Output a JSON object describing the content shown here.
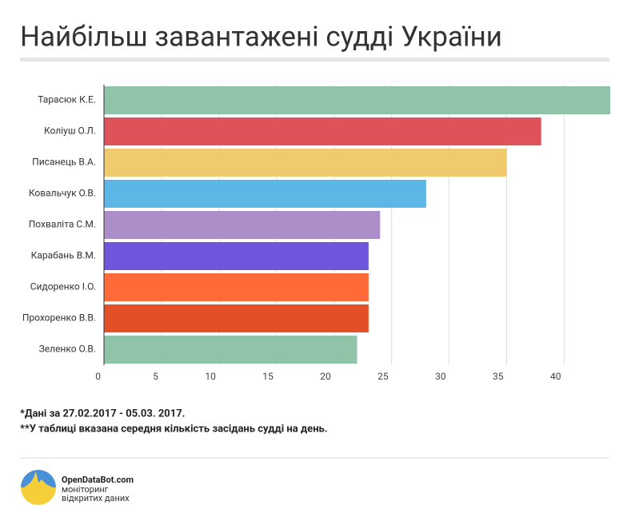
{
  "chart_data": {
    "type": "bar",
    "orientation": "horizontal",
    "title": "Найбільш завантажені судді України",
    "categories": [
      "Тарасюк К.Е.",
      "Коліуш О.Л.",
      "Писанець В.А.",
      "Ковальчук О.В.",
      "Похваліта С.М.",
      "Карабань В.М.",
      "Сидоренко І.О.",
      "Прохоренко В.В.",
      "Зеленко О.В."
    ],
    "values": [
      44,
      38,
      35,
      28,
      24,
      23,
      23,
      23,
      22
    ],
    "colors": [
      "#8fc4a8",
      "#e0525a",
      "#efcb6d",
      "#5db7e6",
      "#ac8fc8",
      "#6f55dc",
      "#ff6a39",
      "#e34f26",
      "#8fc4a8"
    ],
    "xlim": [
      0,
      44
    ],
    "xticks": [
      0,
      5,
      10,
      15,
      20,
      25,
      30,
      35,
      40
    ],
    "grid": true
  },
  "notes": [
    "*Дані за 27.02.2017 - 05.03. 2017.",
    "**У таблиці вказана середня кількість засідань судді на день."
  ],
  "footer": {
    "brand": "OpenDataBot.com",
    "tagline": [
      "моніторинг",
      "відкритих даних"
    ]
  }
}
